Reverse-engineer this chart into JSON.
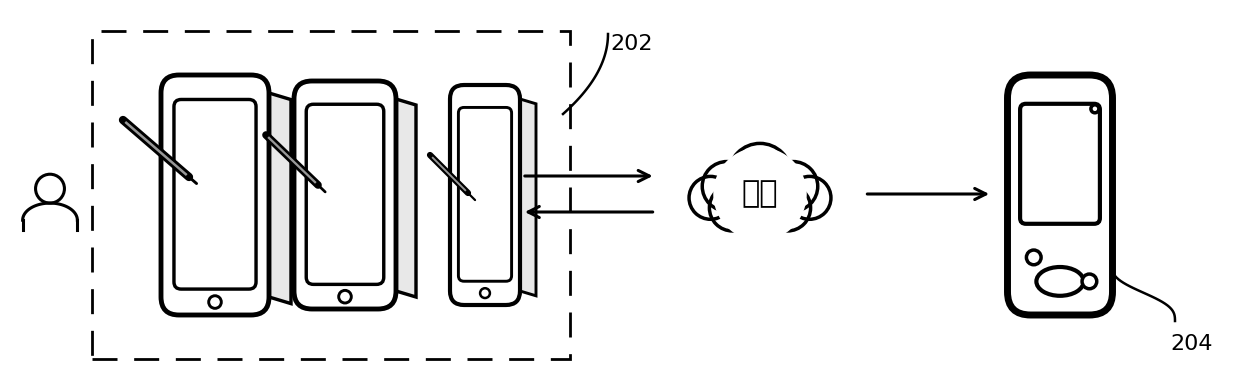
{
  "bg_color": "#ffffff",
  "label_202": "202",
  "label_204": "204",
  "network_label": "网络",
  "fig_width": 12.4,
  "fig_height": 3.89,
  "dpi": 100
}
